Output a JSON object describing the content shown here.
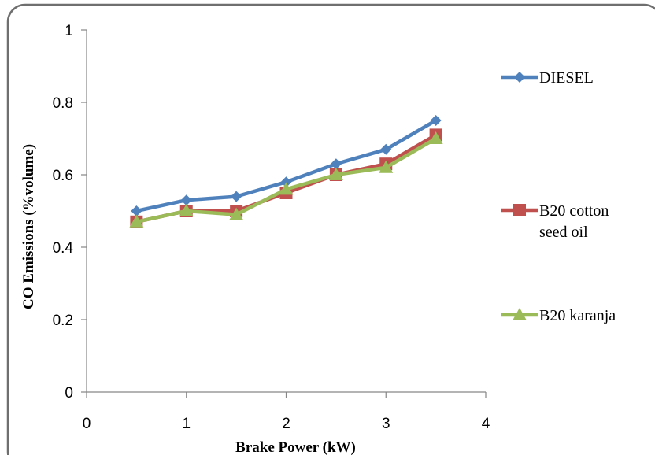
{
  "chart_data": {
    "type": "line",
    "title": "",
    "xlabel": "Brake Power (kW)",
    "ylabel": "CO Emissions (%volume)",
    "xlim": [
      0,
      4
    ],
    "ylim": [
      0,
      1
    ],
    "xticks": [
      "0",
      "1",
      "2",
      "3",
      "4"
    ],
    "yticks": [
      "0",
      "0.2",
      "0.4",
      "0.6",
      "0.8",
      "1"
    ],
    "grid": false,
    "legend_position": "right",
    "x": [
      0.5,
      1,
      1.5,
      2,
      2.5,
      3,
      3.5
    ],
    "series": [
      {
        "name": "DIESEL",
        "legend_lines": [
          "DIESEL"
        ],
        "color": "#4F81BD",
        "marker": "diamond",
        "values": [
          0.5,
          0.53,
          0.54,
          0.58,
          0.63,
          0.67,
          0.75
        ]
      },
      {
        "name": "B20 cotton seed oil",
        "legend_lines": [
          "B20 cotton",
          "seed oil"
        ],
        "color": "#C0504D",
        "marker": "square",
        "values": [
          0.47,
          0.5,
          0.5,
          0.55,
          0.6,
          0.63,
          0.71
        ]
      },
      {
        "name": "B20 karanja",
        "legend_lines": [
          "B20 karanja"
        ],
        "color": "#9BBB59",
        "marker": "triangle",
        "values": [
          0.47,
          0.5,
          0.49,
          0.56,
          0.6,
          0.62,
          0.7
        ]
      }
    ]
  }
}
